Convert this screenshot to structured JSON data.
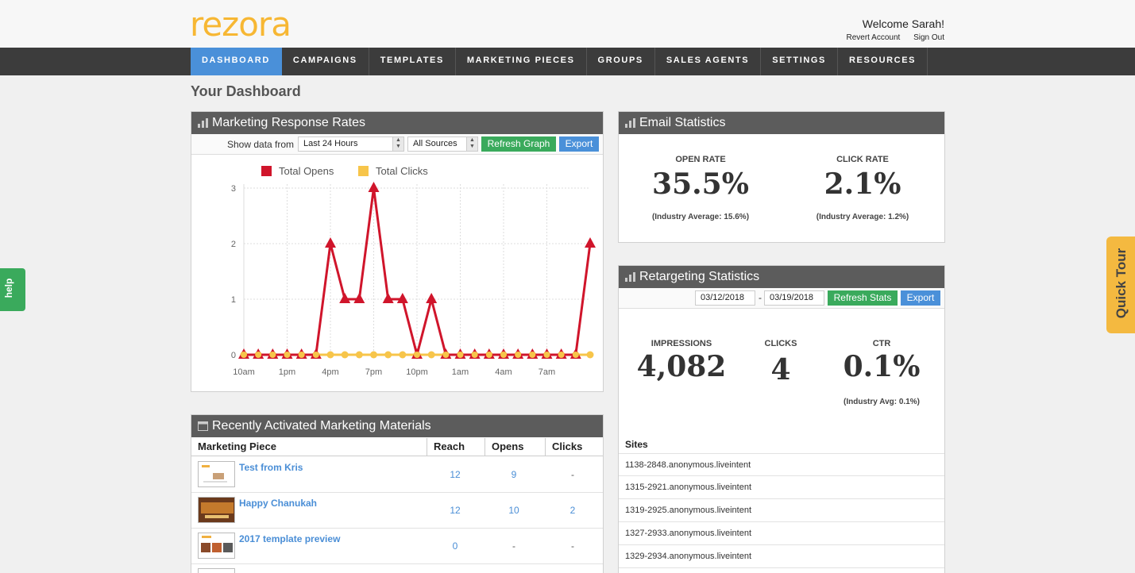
{
  "brand": {
    "logo": "rezora",
    "logo_color": "#f7b733"
  },
  "user": {
    "welcome": "Welcome Sarah!",
    "revert": "Revert Account",
    "signout": "Sign Out"
  },
  "nav": [
    {
      "label": "DASHBOARD",
      "active": true
    },
    {
      "label": "CAMPAIGNS"
    },
    {
      "label": "TEMPLATES"
    },
    {
      "label": "MARKETING PIECES"
    },
    {
      "label": "GROUPS"
    },
    {
      "label": "SALES AGENTS"
    },
    {
      "label": "SETTINGS"
    },
    {
      "label": "RESOURCES"
    }
  ],
  "page_title": "Your Dashboard",
  "response_rates": {
    "title": "Marketing Response Rates",
    "show_label": "Show data from",
    "range": "Last 24 Hours",
    "source": "All Sources",
    "refresh": "Refresh Graph",
    "export": "Export"
  },
  "chart_data": {
    "type": "line",
    "categories": [
      "10am",
      "11am",
      "12pm",
      "1pm",
      "2pm",
      "3pm",
      "4pm",
      "5pm",
      "6pm",
      "7pm",
      "8pm",
      "9pm",
      "10pm",
      "11pm",
      "12am",
      "1am",
      "2am",
      "3am",
      "4am",
      "5am",
      "6am",
      "7am",
      "8am",
      "9am",
      "10am"
    ],
    "tick_labels": [
      "10am",
      "1pm",
      "4pm",
      "7pm",
      "10pm",
      "1am",
      "4am",
      "7am"
    ],
    "tick_index": [
      0,
      3,
      6,
      9,
      12,
      15,
      18,
      21
    ],
    "series": [
      {
        "name": "Total Opens",
        "color": "#d0152b",
        "values": [
          0,
          0,
          0,
          0,
          0,
          0,
          2,
          1,
          1,
          3,
          1,
          1,
          0,
          1,
          0,
          0,
          0,
          0,
          0,
          0,
          0,
          0,
          0,
          0,
          2
        ]
      },
      {
        "name": "Total Clicks",
        "color": "#f7c54a",
        "values": [
          0,
          0,
          0,
          0,
          0,
          0,
          0,
          0,
          0,
          0,
          0,
          0,
          0,
          0,
          0,
          0,
          0,
          0,
          0,
          0,
          0,
          0,
          0,
          0,
          0
        ]
      }
    ],
    "ylim": [
      0,
      3
    ],
    "yticks": [
      "0",
      "1",
      "2",
      "3"
    ],
    "grid": true,
    "legend": "top"
  },
  "email_stats": {
    "title": "Email Statistics",
    "open_label": "OPEN RATE",
    "open_value": "35.5%",
    "open_avg": "(Industry Average: 15.6%)",
    "click_label": "CLICK RATE",
    "click_value": "2.1%",
    "click_avg": "(Industry Average: 1.2%)"
  },
  "retargeting": {
    "title": "Retargeting Statistics",
    "date_from": "03/12/2018",
    "date_sep": "-",
    "date_to": "03/19/2018",
    "refresh": "Refresh Stats",
    "export": "Export",
    "impressions_label": "IMPRESSIONS",
    "impressions_value": "4,082",
    "clicks_label": "CLICKS",
    "clicks_value": "4",
    "ctr_label": "CTR",
    "ctr_value": "0.1%",
    "ctr_avg": "(Industry Avg: 0.1%)",
    "sites_header": "Sites",
    "sites": [
      "1138-2848.anonymous.liveintent",
      "1315-2921.anonymous.liveintent",
      "1319-2925.anonymous.liveintent",
      "1327-2933.anonymous.liveintent",
      "1329-2934.anonymous.liveintent"
    ]
  },
  "materials": {
    "title": "Recently Activated Marketing Materials",
    "headers": {
      "piece": "Marketing Piece",
      "reach": "Reach",
      "opens": "Opens",
      "clicks": "Clicks"
    },
    "rows": [
      {
        "name": "Test from Kris",
        "reach": "12",
        "opens": "9",
        "clicks": "-"
      },
      {
        "name": "Happy Chanukah",
        "reach": "12",
        "opens": "10",
        "clicks": "2"
      },
      {
        "name": "2017 template preview",
        "reach": "0",
        "opens": "-",
        "clicks": "-"
      }
    ]
  },
  "help": "help",
  "quick_tour": "Quick Tour"
}
